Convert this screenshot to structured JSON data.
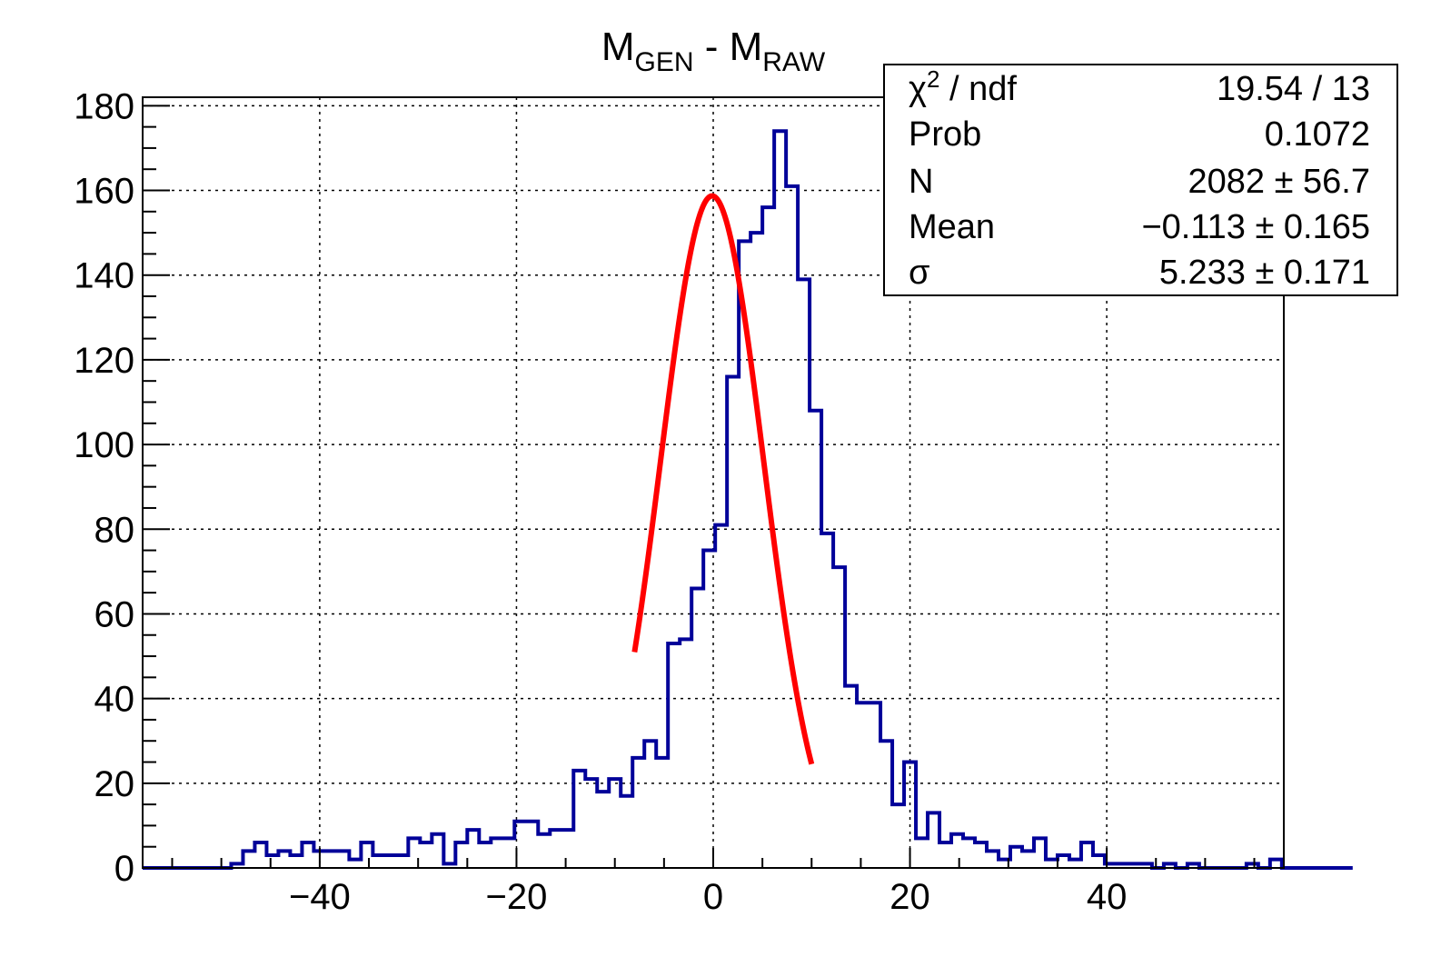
{
  "chart_data": {
    "type": "bar",
    "title": {
      "main": "M",
      "sub1": "GEN",
      "mid": " - M",
      "sub2": "RAW"
    },
    "xlabel": "",
    "ylabel": "",
    "xlim": [
      -58,
      58
    ],
    "ylim": [
      0,
      182
    ],
    "grid": true,
    "x_ticks": [
      -40,
      -20,
      0,
      20,
      40
    ],
    "x_tick_labels": [
      "−40",
      "−20",
      "0",
      "20",
      "40"
    ],
    "y_ticks": [
      0,
      20,
      40,
      60,
      80,
      100,
      120,
      140,
      160,
      180
    ],
    "y_tick_labels": [
      "0",
      "20",
      "40",
      "60",
      "80",
      "100",
      "120",
      "140",
      "160",
      "180"
    ],
    "bin_edges_start": -55,
    "bin_width": 1.2,
    "series": [
      {
        "color": "#000099",
        "values": [
          0,
          0,
          0,
          0,
          0,
          1,
          4,
          6,
          3,
          4,
          3,
          6,
          4,
          4,
          4,
          2,
          6,
          3,
          3,
          3,
          7,
          6,
          8,
          1,
          6,
          9,
          6,
          7,
          7,
          11,
          11,
          8,
          9,
          9,
          23,
          21,
          18,
          21,
          17,
          26,
          30,
          26,
          53,
          54,
          66,
          75,
          81,
          116,
          148,
          150,
          156,
          174,
          161,
          139,
          108,
          79,
          71,
          43,
          39,
          39,
          30,
          15,
          25,
          7,
          13,
          6,
          8,
          7,
          6,
          4,
          2,
          5,
          4,
          7,
          2,
          3,
          2,
          6,
          3,
          1,
          1,
          1,
          1,
          0,
          1,
          0,
          1,
          0,
          0,
          0,
          0,
          1,
          0,
          2,
          0,
          0,
          0,
          0,
          0,
          0
        ]
      },
      {
        "type": "line",
        "color": "#ff0000",
        "fit": "gaus",
        "amplitude": 158.7,
        "mean": -0.113,
        "sigma": 5.233,
        "range": [
          -8.0,
          10.0
        ]
      }
    ],
    "stats_box": {
      "placement": "top-right",
      "rows": [
        {
          "label": "χ",
          "sup": "2",
          "label_rest": " / ndf",
          "value": "19.54 / 13"
        },
        {
          "label": "Prob",
          "value": "0.1072"
        },
        {
          "label": "N",
          "value": "2082 ± 56.7"
        },
        {
          "label": "Mean",
          "value": "−0.113 ± 0.165"
        },
        {
          "label": "σ",
          "value": "5.233 ± 0.171"
        }
      ]
    }
  }
}
